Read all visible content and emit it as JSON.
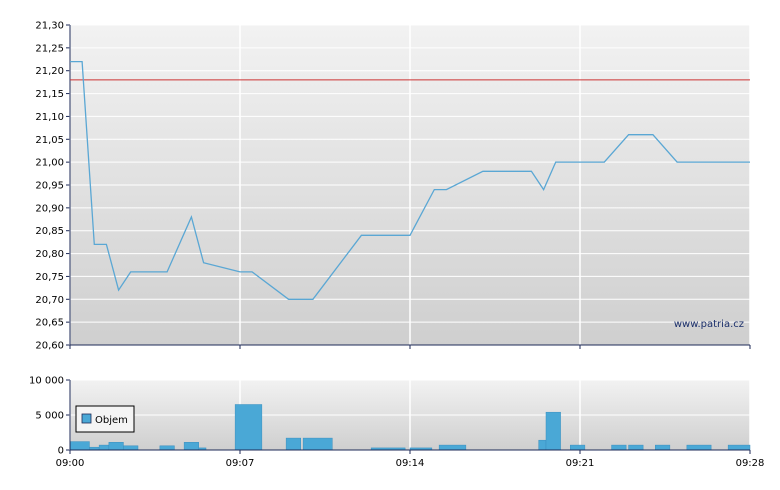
{
  "chart_data": [
    {
      "type": "line",
      "series": [
        {
          "x": [
            "09:00",
            "09:00.5",
            "09:01",
            "09:01.5",
            "09:02",
            "09:02.5",
            "09:03",
            "09:04",
            "09:05",
            "09:05.5",
            "09:07",
            "09:07.5",
            "09:09",
            "09:10",
            "09:12",
            "09:13",
            "09:14",
            "09:15",
            "09:15.5",
            "09:17",
            "09:19",
            "09:19.5",
            "09:20",
            "09:21",
            "09:22",
            "09:23",
            "09:24",
            "09:25",
            "09:26",
            "09:28"
          ],
          "values": [
            21.22,
            21.22,
            20.82,
            20.82,
            20.72,
            20.76,
            20.76,
            20.76,
            20.88,
            20.78,
            20.76,
            20.76,
            20.7,
            20.7,
            20.84,
            20.84,
            20.84,
            20.94,
            20.94,
            20.98,
            20.98,
            20.94,
            21.0,
            21.0,
            21.0,
            21.06,
            21.06,
            21.0,
            21.0,
            21.0
          ]
        }
      ],
      "reference_line": 21.18,
      "y_ticks": [
        "20,60",
        "20,65",
        "20,70",
        "20,75",
        "20,80",
        "20,85",
        "20,90",
        "20,95",
        "21,00",
        "21,05",
        "21,10",
        "21,15",
        "21,20",
        "21,25",
        "21,30"
      ],
      "ylim": [
        20.6,
        21.3
      ],
      "xlim": [
        "09:00",
        "09:28"
      ],
      "grid": true,
      "watermark": "www.patria.cz",
      "colors": {
        "line": "#5aa7d4",
        "reference": "#cc3333"
      }
    },
    {
      "type": "bar",
      "series": [
        {
          "name": "Objem",
          "bars": [
            {
              "t": 0.0,
              "w": 0.8,
              "v": 1200
            },
            {
              "t": 0.8,
              "w": 0.4,
              "v": 400
            },
            {
              "t": 1.2,
              "w": 0.4,
              "v": 700
            },
            {
              "t": 1.6,
              "w": 0.6,
              "v": 1100
            },
            {
              "t": 2.2,
              "w": 0.6,
              "v": 600
            },
            {
              "t": 3.7,
              "w": 0.6,
              "v": 600
            },
            {
              "t": 4.7,
              "w": 0.6,
              "v": 1100
            },
            {
              "t": 5.3,
              "w": 0.3,
              "v": 300
            },
            {
              "t": 6.8,
              "w": 1.1,
              "v": 6500
            },
            {
              "t": 8.9,
              "w": 0.6,
              "v": 1700
            },
            {
              "t": 9.6,
              "w": 1.2,
              "v": 1700
            },
            {
              "t": 12.4,
              "w": 1.4,
              "v": 300
            },
            {
              "t": 14.0,
              "w": 0.9,
              "v": 300
            },
            {
              "t": 15.2,
              "w": 1.1,
              "v": 700
            },
            {
              "t": 19.3,
              "w": 0.3,
              "v": 1400
            },
            {
              "t": 19.6,
              "w": 0.6,
              "v": 5400
            },
            {
              "t": 20.6,
              "w": 0.6,
              "v": 700
            },
            {
              "t": 22.3,
              "w": 0.6,
              "v": 700
            },
            {
              "t": 23.0,
              "w": 0.6,
              "v": 700
            },
            {
              "t": 24.1,
              "w": 0.6,
              "v": 700
            },
            {
              "t": 25.4,
              "w": 1.0,
              "v": 700
            },
            {
              "t": 27.1,
              "w": 0.9,
              "v": 700
            }
          ]
        }
      ],
      "legend": "Objem",
      "y_ticks": [
        "0",
        "5 000",
        "10 000"
      ],
      "ylim": [
        0,
        10000
      ],
      "x_ticks": [
        "09:00",
        "09:07",
        "09:14",
        "09:21",
        "09:28"
      ],
      "grid": true,
      "colors": {
        "bar": "#4aa8d6",
        "bar_stroke": "#3a8fbf"
      }
    }
  ]
}
